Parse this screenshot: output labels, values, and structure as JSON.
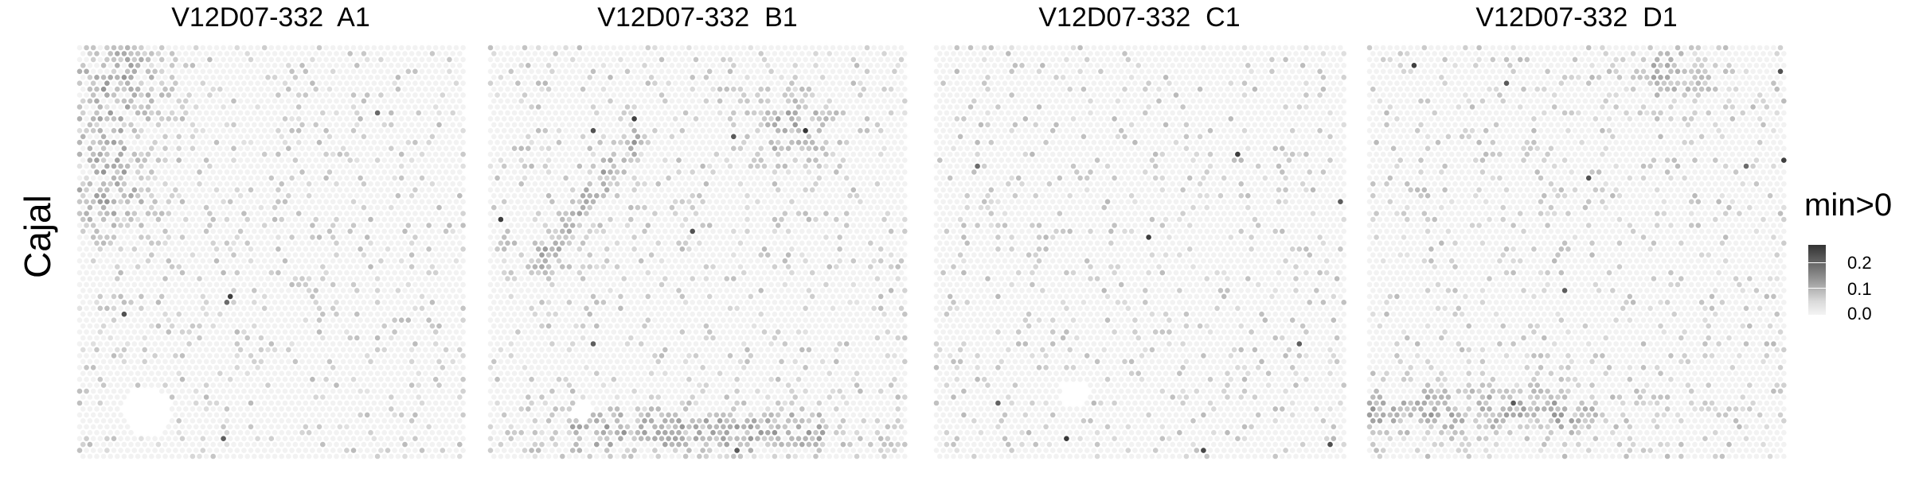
{
  "row_label": "Cajal",
  "legend": {
    "title": "min>0",
    "ticks": [
      "0.2",
      "0.1",
      "0.0"
    ]
  },
  "chart_data": {
    "type": "heatmap",
    "description_of_encoding": "",
    "row_label": "Cajal",
    "color_scale": {
      "name": "min>0",
      "range": [
        0.0,
        0.25
      ],
      "ticks": [
        0.2,
        0.1,
        0.0
      ],
      "low_color": "#f2f2f2",
      "high_color": "#1a1a1a"
    },
    "panels": [
      {
        "title": "V12D07-332  A1",
        "hotspots": [
          "upper-left",
          "left-middle"
        ]
      },
      {
        "title": "V12D07-332  B1",
        "hotspots": [
          "bottom-edge",
          "diagonal-streak",
          "upper-right"
        ]
      },
      {
        "title": "V12D07-332  C1",
        "hotspots": []
      },
      {
        "title": "V12D07-332  D1",
        "hotspots": [
          "bottom-left-band",
          "top-right"
        ]
      }
    ]
  }
}
